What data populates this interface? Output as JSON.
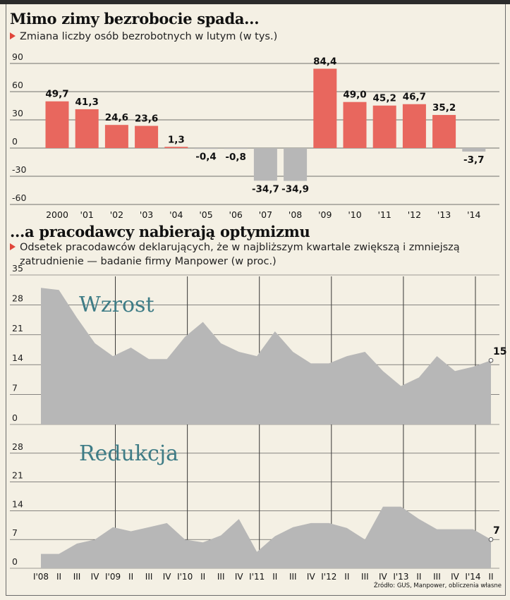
{
  "chart_data": [
    {
      "type": "bar",
      "title": "Mimo zimy bezrobocie spada...",
      "subtitle": "Zmiana liczby osób bezrobotnych w lutym (w tys.)",
      "categories": [
        "2000",
        "'01",
        "'02",
        "'03",
        "'04",
        "'05",
        "'06",
        "'07",
        "'08",
        "'09",
        "'10",
        "'11",
        "'12",
        "'13",
        "'14"
      ],
      "values": [
        49.7,
        41.3,
        24.6,
        23.6,
        1.3,
        -0.4,
        -0.8,
        -34.7,
        -34.9,
        84.4,
        49.0,
        45.2,
        46.7,
        35.2,
        -3.7
      ],
      "value_labels": [
        "49,7",
        "41,3",
        "24,6",
        "23,6",
        "1,3",
        "-0,4",
        "-0,8",
        "-34,7",
        "-34,9",
        "84,4",
        "49,0",
        "45,2",
        "46,7",
        "35,2",
        "-3,7"
      ],
      "ylim": [
        -60,
        90
      ],
      "yticks": [
        90,
        60,
        30,
        0,
        -30,
        -60
      ],
      "ytick_labels": [
        "90",
        "60",
        "30",
        "0",
        "-30",
        "-60"
      ],
      "colors": {
        "positive": "#e8675e",
        "negative": "#b7b7b7",
        "grid": "#444444"
      },
      "grid": true
    },
    {
      "type": "area",
      "title": "...a pracodawcy nabierają optymizmu",
      "subtitle_line1": "Odsetek pracodawców deklarujących, że w najbliższym kwartale zwiększą i zmniejszą",
      "subtitle_line2": "zatrudnienie — badanie firmy Manpower (w proc.)",
      "x_labels": [
        "I'08",
        "II",
        "III",
        "IV",
        "I'09",
        "II",
        "III",
        "IV",
        "I'10",
        "II",
        "III",
        "IV",
        "I'11",
        "II",
        "III",
        "IV",
        "I'12",
        "II",
        "III",
        "IV",
        "I'13",
        "II",
        "III",
        "IV",
        "I'14",
        "II"
      ],
      "yticks": [
        35,
        28,
        21,
        14,
        7,
        0
      ],
      "ytick_labels": [
        "35",
        "28",
        "21",
        "14",
        "7",
        "0"
      ],
      "ylim": [
        0,
        35
      ],
      "series": [
        {
          "name": "Wzrost",
          "values": [
            32,
            31.5,
            25,
            19,
            16,
            18,
            15.3,
            15.3,
            20.5,
            24,
            19,
            17,
            16,
            21.8,
            17,
            14.3,
            14.3,
            16,
            17,
            12.5,
            9,
            11,
            16,
            12.5,
            13.5,
            15
          ],
          "end_label": "15",
          "color": "#b7b7b7"
        },
        {
          "name": "Redukcja",
          "values": [
            3.5,
            3.5,
            6,
            7,
            10,
            9,
            10,
            11,
            7,
            6.3,
            8,
            12,
            4,
            7.8,
            10,
            11,
            11,
            9.8,
            7,
            15,
            15,
            12,
            9.5,
            9.5,
            9.5,
            7
          ],
          "end_label": "7",
          "color": "#b7b7b7"
        }
      ],
      "grid": true
    }
  ],
  "source": "Źródło: GUS, Manpower, obliczenia własne"
}
